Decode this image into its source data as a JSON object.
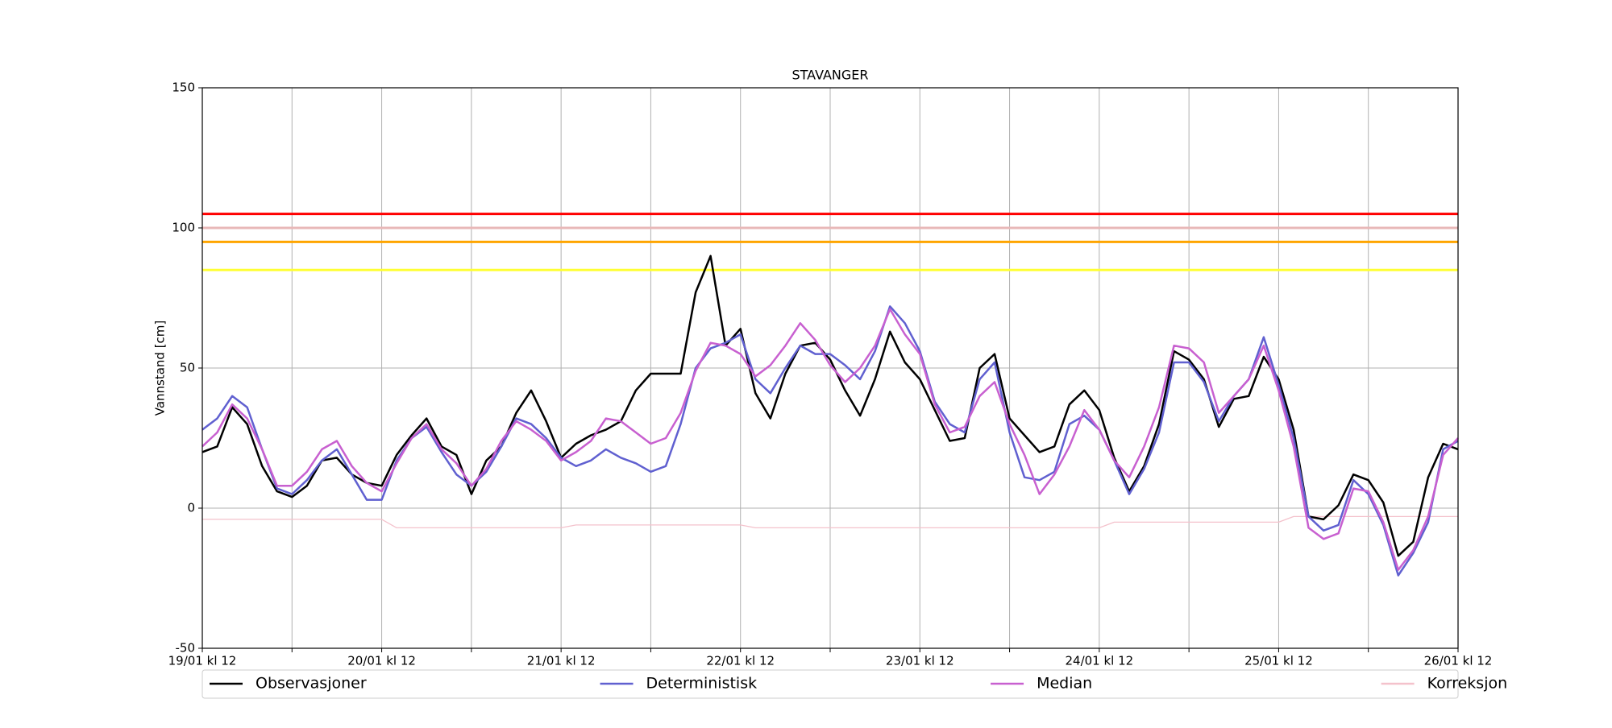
{
  "chart_data": {
    "type": "line",
    "title": "STAVANGER",
    "y_label": "Vannstand [cm]",
    "x": [
      0,
      2,
      4,
      6,
      8,
      10,
      12,
      14,
      16,
      18,
      20,
      22,
      24,
      26,
      28,
      30,
      32,
      34,
      36,
      38,
      40,
      42,
      44,
      46,
      48,
      50,
      52,
      54,
      56,
      58,
      60,
      62,
      64,
      66,
      68,
      70,
      72,
      74,
      76,
      78,
      80,
      82,
      84,
      86,
      88,
      90,
      92,
      94,
      96,
      98,
      100,
      102,
      104,
      106,
      108,
      110,
      112,
      114,
      116,
      118,
      120,
      122,
      124,
      126,
      128,
      130,
      132,
      134,
      136,
      138,
      140,
      142,
      144,
      146,
      148,
      150,
      152,
      154,
      156,
      158,
      160,
      162,
      164,
      166,
      168
    ],
    "series": [
      {
        "name": "Observasjoner",
        "color": "#000000",
        "values": [
          20,
          22,
          36,
          30,
          15,
          6,
          4,
          8,
          17,
          18,
          12,
          9,
          8,
          19,
          26,
          32,
          22,
          19,
          5,
          17,
          22,
          34,
          42,
          31,
          18,
          23,
          26,
          28,
          31,
          42,
          48,
          48,
          48,
          77,
          90,
          58,
          64,
          41,
          32,
          48,
          58,
          59,
          53,
          42,
          33,
          46,
          63,
          52,
          46,
          35,
          24,
          25,
          50,
          55,
          32,
          26,
          20,
          22,
          37,
          42,
          35,
          18,
          6,
          15,
          30,
          56,
          53,
          46,
          29,
          39,
          40,
          54,
          46,
          28,
          -3,
          -4,
          1,
          12,
          10,
          2,
          -17,
          -12,
          11,
          23,
          21
        ]
      },
      {
        "name": "Deterministisk",
        "color": "#6060d0",
        "values": [
          28,
          32,
          40,
          36,
          21,
          7,
          5,
          10,
          17,
          21,
          12,
          3,
          3,
          17,
          25,
          29,
          20,
          12,
          8,
          13,
          22,
          32,
          30,
          25,
          18,
          15,
          17,
          21,
          18,
          16,
          13,
          15,
          30,
          50,
          57,
          59,
          62,
          46,
          41,
          50,
          58,
          55,
          55,
          51,
          46,
          56,
          72,
          66,
          56,
          38,
          30,
          27,
          46,
          52,
          27,
          11,
          10,
          13,
          30,
          33,
          28,
          17,
          5,
          14,
          27,
          52,
          52,
          45,
          31,
          40,
          46,
          61,
          44,
          25,
          -3,
          -8,
          -6,
          10,
          5,
          -6,
          -24,
          -16,
          -5,
          21,
          24
        ]
      },
      {
        "name": "Median",
        "color": "#c860d0",
        "values": [
          22,
          27,
          37,
          32,
          21,
          8,
          8,
          13,
          21,
          24,
          15,
          9,
          6,
          16,
          25,
          30,
          21,
          16,
          8,
          14,
          24,
          31,
          28,
          24,
          17,
          20,
          24,
          32,
          31,
          27,
          23,
          25,
          34,
          49,
          59,
          58,
          55,
          47,
          51,
          58,
          66,
          60,
          51,
          45,
          50,
          58,
          71,
          62,
          55,
          37,
          27,
          29,
          40,
          45,
          30,
          19,
          5,
          12,
          22,
          35,
          28,
          17,
          11,
          22,
          36,
          58,
          57,
          52,
          34,
          40,
          46,
          58,
          42,
          22,
          -7,
          -11,
          -9,
          7,
          6,
          -5,
          -22,
          -15,
          -3,
          19,
          25
        ]
      },
      {
        "name": "Korreksjon",
        "color": "#f4c2cc",
        "values": [
          -4,
          -4,
          -4,
          -4,
          -4,
          -4,
          -4,
          -4,
          -4,
          -4,
          -4,
          -4,
          -4,
          -7,
          -7,
          -7,
          -7,
          -7,
          -7,
          -7,
          -7,
          -7,
          -7,
          -7,
          -7,
          -6,
          -6,
          -6,
          -6,
          -6,
          -6,
          -6,
          -6,
          -6,
          -6,
          -6,
          -6,
          -7,
          -7,
          -7,
          -7,
          -7,
          -7,
          -7,
          -7,
          -7,
          -7,
          -7,
          -7,
          -7,
          -7,
          -7,
          -7,
          -7,
          -7,
          -7,
          -7,
          -7,
          -7,
          -7,
          -7,
          -5,
          -5,
          -5,
          -5,
          -5,
          -5,
          -5,
          -5,
          -5,
          -5,
          -5,
          -5,
          -3,
          -3,
          -3,
          -3,
          -3,
          -3,
          -3,
          -3,
          -3,
          -3,
          -3,
          -3
        ]
      }
    ],
    "hlines": [
      {
        "value": 105,
        "color": "#ff0000"
      },
      {
        "value": 100,
        "color": "#e8b8b8"
      },
      {
        "value": 95,
        "color": "#ffa500"
      },
      {
        "value": 85,
        "color": "#ffff33"
      }
    ],
    "xlim": [
      0,
      168
    ],
    "xticks": [
      {
        "value": 0,
        "label": "19/01 kl 12"
      },
      {
        "value": 24,
        "label": "20/01 kl 12"
      },
      {
        "value": 48,
        "label": "21/01 kl 12"
      },
      {
        "value": 72,
        "label": "22/01 kl 12"
      },
      {
        "value": 96,
        "label": "23/01 kl 12"
      },
      {
        "value": 120,
        "label": "24/01 kl 12"
      },
      {
        "value": 144,
        "label": "25/01 kl 12"
      },
      {
        "value": 168,
        "label": "26/01 kl 12"
      }
    ],
    "xminorticks": [
      12,
      36,
      60,
      84,
      108,
      132,
      156
    ],
    "ylim": [
      -50,
      150
    ],
    "yticks": [
      -50,
      0,
      50,
      100,
      150
    ],
    "grid": true,
    "legend": "bottom"
  }
}
